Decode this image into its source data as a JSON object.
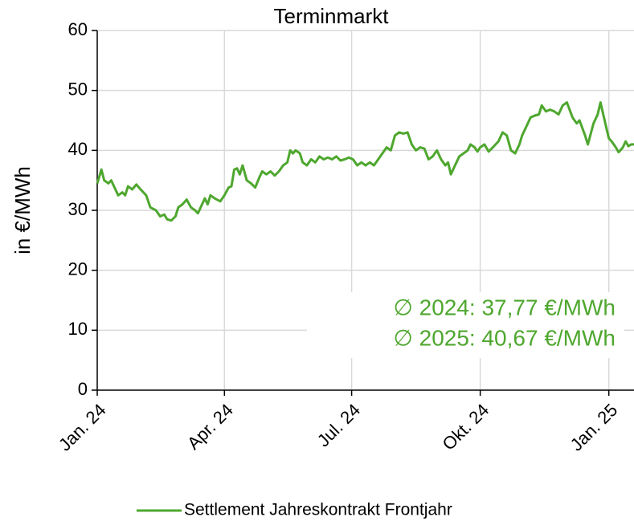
{
  "chart_data": {
    "type": "line",
    "title": "Terminmarkt",
    "ylabel": "in €/MWh",
    "x": [
      0,
      3,
      5,
      8,
      10,
      13,
      15,
      18,
      20,
      22,
      25,
      28,
      31,
      35,
      38,
      42,
      45,
      48,
      50,
      53,
      56,
      58,
      61,
      64,
      67,
      70,
      72,
      75,
      77,
      79,
      81,
      84,
      88,
      91,
      94,
      96,
      98,
      100,
      102,
      104,
      107,
      110,
      113,
      116,
      118,
      121,
      124,
      127,
      130,
      133,
      136,
      138,
      140,
      142,
      145,
      147,
      150,
      153,
      156,
      159,
      162,
      165,
      168,
      171,
      174,
      177,
      180,
      183,
      186,
      189,
      192,
      195,
      198,
      201,
      204,
      207,
      210,
      213,
      216,
      219,
      222,
      225,
      228,
      231,
      234,
      237,
      240,
      243,
      246,
      249,
      251,
      253,
      256,
      259,
      262,
      265,
      267,
      270,
      272,
      274,
      277,
      280,
      283,
      287,
      290,
      293,
      296,
      299,
      302,
      304,
      307,
      310,
      313,
      316,
      318,
      321,
      324,
      327,
      330,
      333,
      336,
      340,
      343,
      345,
      349,
      351,
      355,
      358,
      360,
      362,
      364,
      366,
      368,
      371,
      373,
      376,
      378,
      380,
      382,
      384
    ],
    "series": [
      {
        "name": "Settlement Jahreskontrakt Frontjahr",
        "color": "#4ea72e",
        "values": [
          34.5,
          36.8,
          35,
          34.5,
          35,
          33.5,
          32.5,
          33,
          32.5,
          34,
          33.5,
          34.3,
          33.5,
          32.5,
          30.5,
          30,
          29,
          29.3,
          28.5,
          28.3,
          29,
          30.5,
          31,
          31.8,
          30.5,
          30,
          29.5,
          31,
          32,
          31,
          32.5,
          32,
          31.5,
          32.5,
          33.8,
          34,
          36.8,
          37,
          36,
          37.5,
          35,
          34.5,
          33.8,
          35.5,
          36.5,
          36,
          36.5,
          35.8,
          36.5,
          37.5,
          38,
          40,
          39.5,
          40,
          39.5,
          38,
          37.5,
          38.5,
          38,
          39,
          38.5,
          38.8,
          38.5,
          39,
          38.3,
          38.5,
          38.8,
          38.5,
          37.5,
          38,
          37.5,
          38,
          37.5,
          38.5,
          39.5,
          40.5,
          40,
          42.5,
          43,
          42.8,
          43,
          41,
          40,
          40.5,
          40.3,
          38.5,
          39,
          40,
          38.5,
          37.5,
          38,
          36,
          37.5,
          39,
          39.5,
          40,
          41,
          40.5,
          39.8,
          40.5,
          41,
          39.8,
          40.5,
          41.5,
          43,
          42.5,
          40,
          39.5,
          41,
          42.5,
          44,
          45.5,
          45.8,
          46,
          47.5,
          46.5,
          46.8,
          46.5,
          46,
          47.5,
          48,
          45.5,
          44.5,
          45,
          42.5,
          41,
          44.5,
          46,
          48,
          46,
          44,
          42,
          41.5,
          40.5,
          39.7,
          40.5,
          41.5,
          40.7,
          41,
          41
        ]
      }
    ],
    "xlim": [
      0,
      384
    ],
    "xticks": [
      {
        "value": 0,
        "label": "Jan. 24"
      },
      {
        "value": 91,
        "label": "Apr. 24"
      },
      {
        "value": 182,
        "label": "Jul. 24"
      },
      {
        "value": 274,
        "label": "Okt. 24"
      },
      {
        "value": 366,
        "label": "Jan. 25"
      }
    ],
    "ylim": [
      0,
      60
    ],
    "yticks": [
      0,
      10,
      20,
      30,
      40,
      50,
      60
    ],
    "annotations": [
      "∅    2024: 37,77 €/MWh",
      "∅    2025: 40,67 €/MWh"
    ],
    "grid": true,
    "legend": "bottom"
  }
}
